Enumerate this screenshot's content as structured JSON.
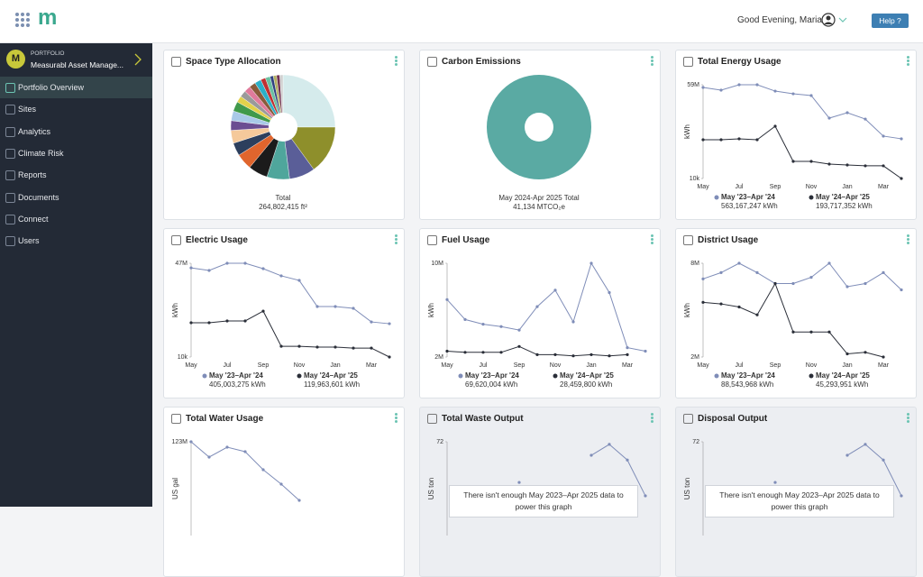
{
  "topbar": {
    "logo": "m",
    "greeting": "Good Evening, Maria",
    "help": "Help ?"
  },
  "sidebar": {
    "avatar": "M",
    "section": "PORTFOLIO",
    "account": "Measurabl Asset Manage...",
    "nav": [
      "Portfolio Overview",
      "Sites",
      "Analytics",
      "Climate Risk",
      "Reports",
      "Documents",
      "Connect",
      "Users"
    ]
  },
  "chart_data": [
    {
      "type": "pie",
      "title": "Space Type Allocation",
      "total_label": "Total",
      "total_value": "264,802,415 ft²",
      "values": [
        25,
        15,
        8,
        7,
        6,
        5,
        4,
        4,
        3,
        3,
        3,
        2,
        2,
        2,
        2,
        2,
        1.5,
        1.5,
        1,
        1,
        1,
        1
      ],
      "colors": [
        "#d5ebec",
        "#8e8f2b",
        "#5a5e98",
        "#4fa69c",
        "#1b1b1b",
        "#e0652d",
        "#2d3f5d",
        "#f5c99b",
        "#6b4d92",
        "#a9c9e8",
        "#40994b",
        "#e2d14b",
        "#9a9a9a",
        "#e07b9b",
        "#8a5b3b",
        "#2bb0c8",
        "#c03131",
        "#6bc0a1",
        "#304181",
        "#b1b061",
        "#703151",
        "#d1d1d1"
      ]
    },
    {
      "type": "pie",
      "title": "Carbon Emissions",
      "total_label": "May 2024-Apr 2025 Total",
      "total_value": "41,134 MTCO₂e",
      "values": [
        100
      ],
      "colors": [
        "#5aaaa3"
      ]
    },
    {
      "type": "line",
      "title": "Total Energy Usage",
      "y_label": "kWh",
      "categories": [
        "May",
        null,
        "Jul",
        null,
        "Sep",
        null,
        "Nov",
        null,
        "Jan",
        null,
        "Mar",
        null
      ],
      "ylim": [
        10000,
        59000000
      ],
      "yticks": [
        {
          "value": 59000000,
          "label": "59M"
        },
        {
          "value": 10000,
          "label": "10k"
        }
      ],
      "series": [
        {
          "name": "May '23–Apr '24",
          "color": "#7f8db8",
          "total": "563,167,247 kWh",
          "values": [
            57300000,
            55600000,
            59000000,
            59000000,
            55000000,
            53300000,
            52200000,
            38000000,
            41400000,
            37400000,
            26700000,
            25000000
          ]
        },
        {
          "name": "May '24–Apr '25",
          "color": "#2a2e38",
          "total": "193,717,352 kWh",
          "values": [
            24400000,
            24400000,
            25000000,
            24400000,
            32900000,
            10800000,
            10800000,
            9100000,
            8500000,
            8000000,
            8000000,
            10000
          ]
        }
      ]
    },
    {
      "type": "line",
      "title": "Electric Usage",
      "y_label": "kWh",
      "categories": [
        "May",
        null,
        "Jul",
        null,
        "Sep",
        null,
        "Nov",
        null,
        "Jan",
        null,
        "Mar",
        null
      ],
      "ylim": [
        10000,
        47000000
      ],
      "yticks": [
        {
          "value": 47000000,
          "label": "47M"
        },
        {
          "value": 10000,
          "label": "10k"
        }
      ],
      "series": [
        {
          "name": "May '23–Apr '24",
          "color": "#7f8db8",
          "total": "405,003,275 kWh",
          "values": [
            44700000,
            43400000,
            47000000,
            47000000,
            44300000,
            40700000,
            38400000,
            25300000,
            25300000,
            24400000,
            17600000,
            16700000
          ]
        },
        {
          "name": "May '24–Apr '25",
          "color": "#2a2e38",
          "total": "119,963,601 kWh",
          "values": [
            17200000,
            17200000,
            18100000,
            18100000,
            23000000,
            5400000,
            5400000,
            5000000,
            5000000,
            4500000,
            4500000,
            10000
          ]
        }
      ]
    },
    {
      "type": "line",
      "title": "Fuel Usage",
      "y_label": "kWh",
      "categories": [
        "May",
        null,
        "Jul",
        null,
        "Sep",
        null,
        "Nov",
        null,
        "Jan",
        null,
        "Mar",
        null
      ],
      "ylim": [
        2000000,
        10000000
      ],
      "yticks": [
        {
          "value": 10000000,
          "label": "10M"
        },
        {
          "value": 2000000,
          "label": "2M"
        }
      ],
      "series": [
        {
          "name": "May '23–Apr '24",
          "color": "#7f8db8",
          "total": "69,620,004 kWh",
          "values": [
            6900000,
            5200000,
            4800000,
            4600000,
            4300000,
            6300000,
            7700000,
            5000000,
            10000000,
            7500000,
            2800000,
            2500000
          ]
        },
        {
          "name": "May '24–Apr '25",
          "color": "#2a2e38",
          "total": "28,459,800 kWh",
          "values": [
            2500000,
            2400000,
            2400000,
            2400000,
            2900000,
            2200000,
            2200000,
            2100000,
            2200000,
            2100000,
            2200000,
            null
          ]
        }
      ]
    },
    {
      "type": "line",
      "title": "District Usage",
      "y_label": "kWh",
      "categories": [
        "May",
        null,
        "Jul",
        null,
        "Sep",
        null,
        "Nov",
        null,
        "Jan",
        null,
        "Mar",
        null
      ],
      "ylim": [
        2000000,
        8000000
      ],
      "yticks": [
        {
          "value": 8000000,
          "label": "8M"
        },
        {
          "value": 2000000,
          "label": "2M"
        }
      ],
      "series": [
        {
          "name": "May '23–Apr '24",
          "color": "#7f8db8",
          "total": "88,543,968 kWh",
          "values": [
            7000000,
            7400000,
            8000000,
            7400000,
            6700000,
            6700000,
            7100000,
            8000000,
            6500000,
            6700000,
            7400000,
            6300000
          ]
        },
        {
          "name": "May '24–Apr '25",
          "color": "#2a2e38",
          "total": "45,293,951 kWh",
          "values": [
            5500000,
            5400000,
            5200000,
            4700000,
            6700000,
            3600000,
            3600000,
            3600000,
            2200000,
            2300000,
            2000000,
            null
          ]
        }
      ]
    },
    {
      "type": "line",
      "title": "Total Water Usage",
      "y_label": "US gal",
      "ylim": [
        0,
        123000000
      ],
      "yticks": [
        {
          "value": 123000000,
          "label": "123M"
        }
      ],
      "series": [
        {
          "color": "#7f8db8",
          "values": [
            123000000,
            102900000,
            115900000,
            110000000,
            86300000,
            67400000,
            46100000,
            null,
            null,
            null,
            null,
            null
          ]
        }
      ]
    },
    {
      "type": "line",
      "title": "Total Waste Output",
      "y_label": "US ton",
      "message": "There isn't enough May 2023–Apr 2025 data to power this graph",
      "ylim": [
        0,
        72
      ],
      "yticks": [
        72
      ],
      "series": [
        {
          "color": "#7f8db8",
          "values": [
            null,
            null,
            null,
            null,
            40.8,
            null,
            null,
            null,
            61.6,
            70,
            58,
            30.5
          ]
        }
      ]
    },
    {
      "type": "line",
      "title": "Disposal Output",
      "y_label": "US ton",
      "message": "There isn't enough May 2023–Apr 2025 data to power this graph",
      "ylim": [
        0,
        72
      ],
      "yticks": [
        72
      ],
      "series": [
        {
          "color": "#7f8db8",
          "values": [
            null,
            null,
            null,
            null,
            40.8,
            null,
            null,
            null,
            61.6,
            70,
            58,
            30.5
          ]
        }
      ]
    }
  ]
}
